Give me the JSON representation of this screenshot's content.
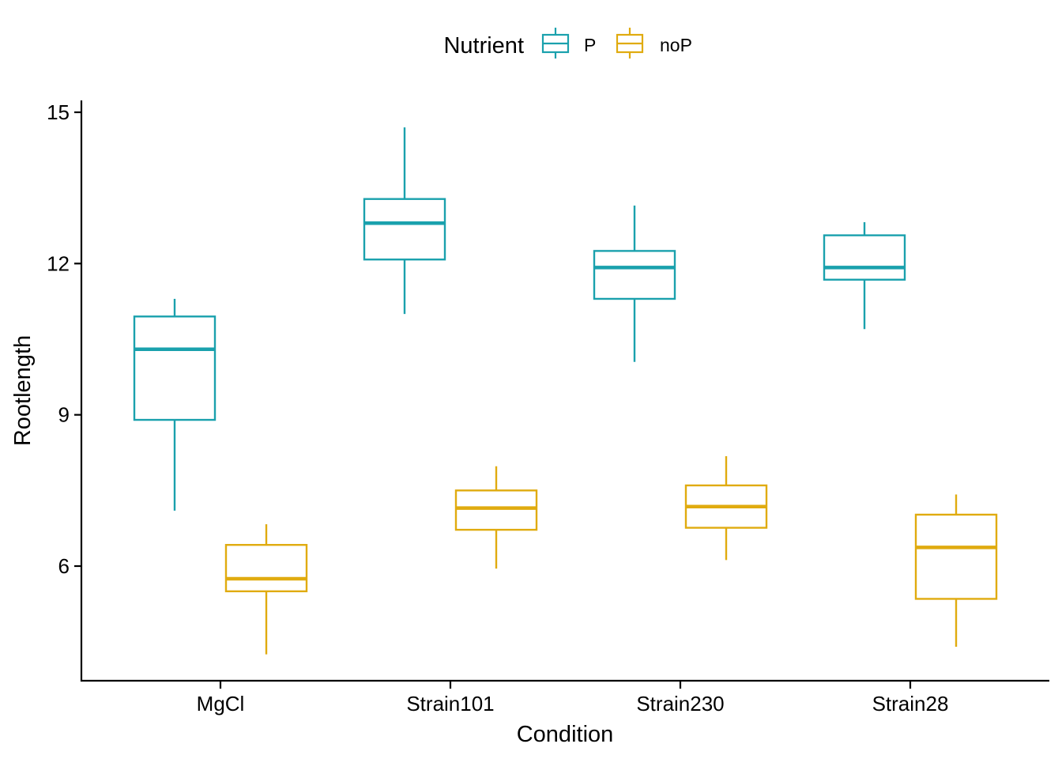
{
  "chart_data": {
    "type": "boxplot",
    "title": "",
    "xlabel": "Condition",
    "ylabel": "Rootlength",
    "ylim": [
      3.8,
      15.2
    ],
    "yticks": [
      6,
      9,
      12,
      15
    ],
    "ytick_labels": [
      "6",
      "9",
      "12",
      "15"
    ],
    "categories": [
      "MgCl",
      "Strain101",
      "Strain230",
      "Strain28"
    ],
    "grid": false,
    "legend": {
      "title": "Nutrient",
      "position": "top",
      "entries": [
        "P",
        "noP"
      ]
    },
    "series": [
      {
        "name": "P",
        "color": "#1aa1ad",
        "boxes": [
          {
            "whisker_low": 7.1,
            "q1": 8.9,
            "median": 10.3,
            "q3": 10.95,
            "whisker_high": 11.3
          },
          {
            "whisker_low": 11.0,
            "q1": 12.08,
            "median": 12.8,
            "q3": 13.28,
            "whisker_high": 14.7
          },
          {
            "whisker_low": 10.05,
            "q1": 11.3,
            "median": 11.92,
            "q3": 12.25,
            "whisker_high": 13.15
          },
          {
            "whisker_low": 10.7,
            "q1": 11.68,
            "median": 11.92,
            "q3": 12.56,
            "whisker_high": 12.82
          }
        ]
      },
      {
        "name": "noP",
        "color": "#e0ab0f",
        "boxes": [
          {
            "whisker_low": 4.25,
            "q1": 5.5,
            "median": 5.75,
            "q3": 6.42,
            "whisker_high": 6.83
          },
          {
            "whisker_low": 5.95,
            "q1": 6.72,
            "median": 7.15,
            "q3": 7.5,
            "whisker_high": 7.98
          },
          {
            "whisker_low": 6.12,
            "q1": 6.76,
            "median": 7.18,
            "q3": 7.6,
            "whisker_high": 8.18
          },
          {
            "whisker_low": 4.4,
            "q1": 5.35,
            "median": 6.37,
            "q3": 7.02,
            "whisker_high": 7.42
          }
        ]
      }
    ]
  }
}
